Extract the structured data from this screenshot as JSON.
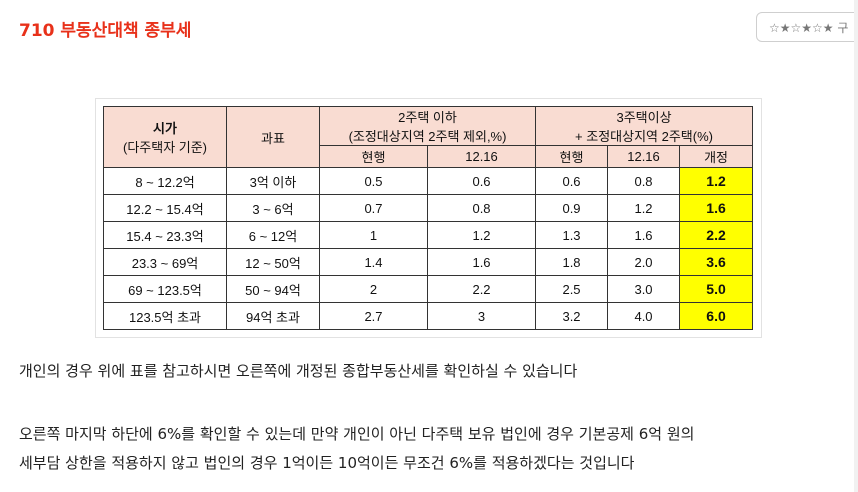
{
  "post": {
    "title": "710 부동산대책 종부세",
    "rating": "☆★☆★☆★ 구"
  },
  "table": {
    "header": {
      "price_main": "시가",
      "price_sub": "(다주택자 기준)",
      "tax_base": "과표",
      "two_house_line1": "2주택 이하",
      "two_house_line2": "(조정대상지역 2주택 제외,%)",
      "three_house_line1": "3주택이상",
      "three_house_line2": "+ 조정대상지역 2주택(%)",
      "current": "현행",
      "date": "12.16",
      "revised": "개정"
    },
    "rows": [
      {
        "price": "8 ~ 12.2억",
        "base": "3억 이하",
        "two_current": "0.5",
        "two_1216": "0.6",
        "three_current": "0.6",
        "three_1216": "0.8",
        "three_revised": "1.2"
      },
      {
        "price": "12.2 ~ 15.4억",
        "base": "3 ~ 6억",
        "two_current": "0.7",
        "two_1216": "0.8",
        "three_current": "0.9",
        "three_1216": "1.2",
        "three_revised": "1.6"
      },
      {
        "price": "15.4 ~ 23.3억",
        "base": "6 ~ 12억",
        "two_current": "1",
        "two_1216": "1.2",
        "three_current": "1.3",
        "three_1216": "1.6",
        "three_revised": "2.2"
      },
      {
        "price": "23.3 ~ 69억",
        "base": "12 ~ 50억",
        "two_current": "1.4",
        "two_1216": "1.6",
        "three_current": "1.8",
        "three_1216": "2.0",
        "three_revised": "3.6"
      },
      {
        "price": "69 ~ 123.5억",
        "base": "50 ~ 94억",
        "two_current": "2",
        "two_1216": "2.2",
        "three_current": "2.5",
        "three_1216": "3.0",
        "three_revised": "5.0"
      },
      {
        "price": "123.5억 초과",
        "base": "94억 초과",
        "two_current": "2.7",
        "two_1216": "3",
        "three_current": "3.2",
        "three_1216": "4.0",
        "three_revised": "6.0"
      }
    ]
  },
  "body": {
    "para1": "개인의 경우 위에 표를 참고하시면 오른쪽에 개정된 종합부동산세를 확인하실 수 있습니다",
    "para2_line1": "오른쪽 마지막 하단에 6%를 확인할 수 있는데 만약 개인이 아닌 다주택 보유 법인에 경우 기본공제 6억 원의",
    "para2_line2": "세부담 상한을 적용하지 않고 법인의 경우 1억이든 10억이든 무조건 6%를 적용하겠다는 것입니다"
  }
}
